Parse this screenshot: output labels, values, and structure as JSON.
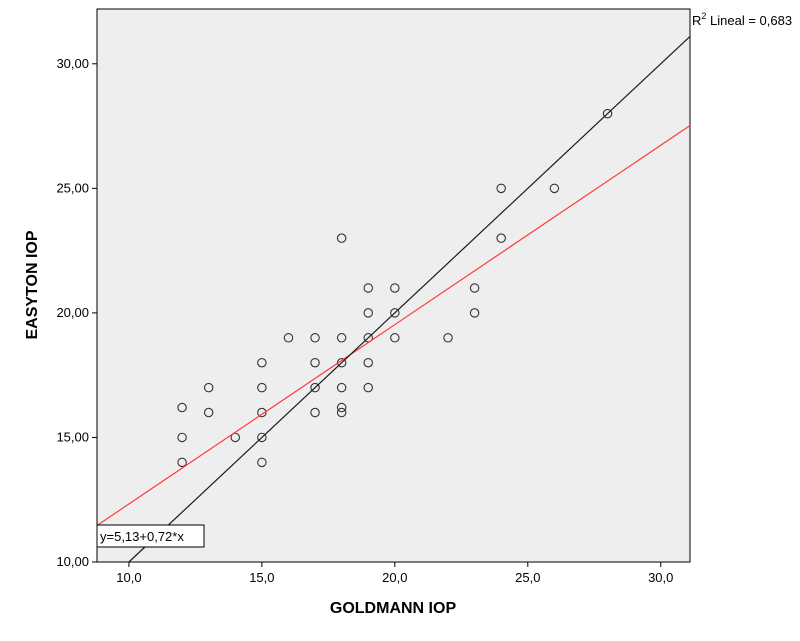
{
  "chart_data": {
    "type": "scatter",
    "xlabel": "GOLDMANN IOP",
    "ylabel": "EASYTON IOP",
    "xlim": [
      8.8,
      31.1
    ],
    "ylim": [
      10.0,
      32.2
    ],
    "x_ticks": [
      10,
      15,
      20,
      25,
      30
    ],
    "x_tick_labels": [
      "10,0",
      "15,0",
      "20,0",
      "25,0",
      "30,0"
    ],
    "y_ticks": [
      10,
      15,
      20,
      25,
      30
    ],
    "y_tick_labels": [
      "10,00",
      "15,00",
      "20,00",
      "25,00",
      "30,00"
    ],
    "grid": false,
    "series": [
      {
        "points": [
          {
            "x": 12,
            "y": 16.2
          },
          {
            "x": 12,
            "y": 15
          },
          {
            "x": 12,
            "y": 14
          },
          {
            "x": 13,
            "y": 17
          },
          {
            "x": 13,
            "y": 16
          },
          {
            "x": 14,
            "y": 15
          },
          {
            "x": 15,
            "y": 18
          },
          {
            "x": 15,
            "y": 17
          },
          {
            "x": 15,
            "y": 16
          },
          {
            "x": 15,
            "y": 15
          },
          {
            "x": 15,
            "y": 14
          },
          {
            "x": 16,
            "y": 19
          },
          {
            "x": 17,
            "y": 19
          },
          {
            "x": 17,
            "y": 18
          },
          {
            "x": 17,
            "y": 17
          },
          {
            "x": 17,
            "y": 16
          },
          {
            "x": 18,
            "y": 23
          },
          {
            "x": 18,
            "y": 19
          },
          {
            "x": 18,
            "y": 18
          },
          {
            "x": 18,
            "y": 17
          },
          {
            "x": 18,
            "y": 16.2
          },
          {
            "x": 18,
            "y": 16
          },
          {
            "x": 19,
            "y": 21
          },
          {
            "x": 19,
            "y": 20
          },
          {
            "x": 19,
            "y": 19
          },
          {
            "x": 19,
            "y": 18
          },
          {
            "x": 19,
            "y": 17
          },
          {
            "x": 20,
            "y": 21
          },
          {
            "x": 20,
            "y": 20
          },
          {
            "x": 20,
            "y": 19
          },
          {
            "x": 22,
            "y": 19
          },
          {
            "x": 23,
            "y": 21
          },
          {
            "x": 23,
            "y": 20
          },
          {
            "x": 24,
            "y": 25
          },
          {
            "x": 24,
            "y": 23
          },
          {
            "x": 26,
            "y": 25
          },
          {
            "x": 28,
            "y": 28
          }
        ]
      }
    ],
    "lines": [
      {
        "id": "fit-line",
        "color": "#ff3b3b",
        "intercept": 5.13,
        "slope": 0.72,
        "label": "y=5,13+0,72*x"
      },
      {
        "id": "reference-line",
        "color": "#1a1a1a",
        "intercept": 0,
        "slope": 1
      }
    ],
    "r2_label": {
      "base": "R",
      "sup": "2",
      "rest": " Lineal = 0,683"
    },
    "colors": {
      "plot_background": "#eeeeee",
      "marker_stroke": "#333333",
      "frame": "#000000"
    }
  }
}
